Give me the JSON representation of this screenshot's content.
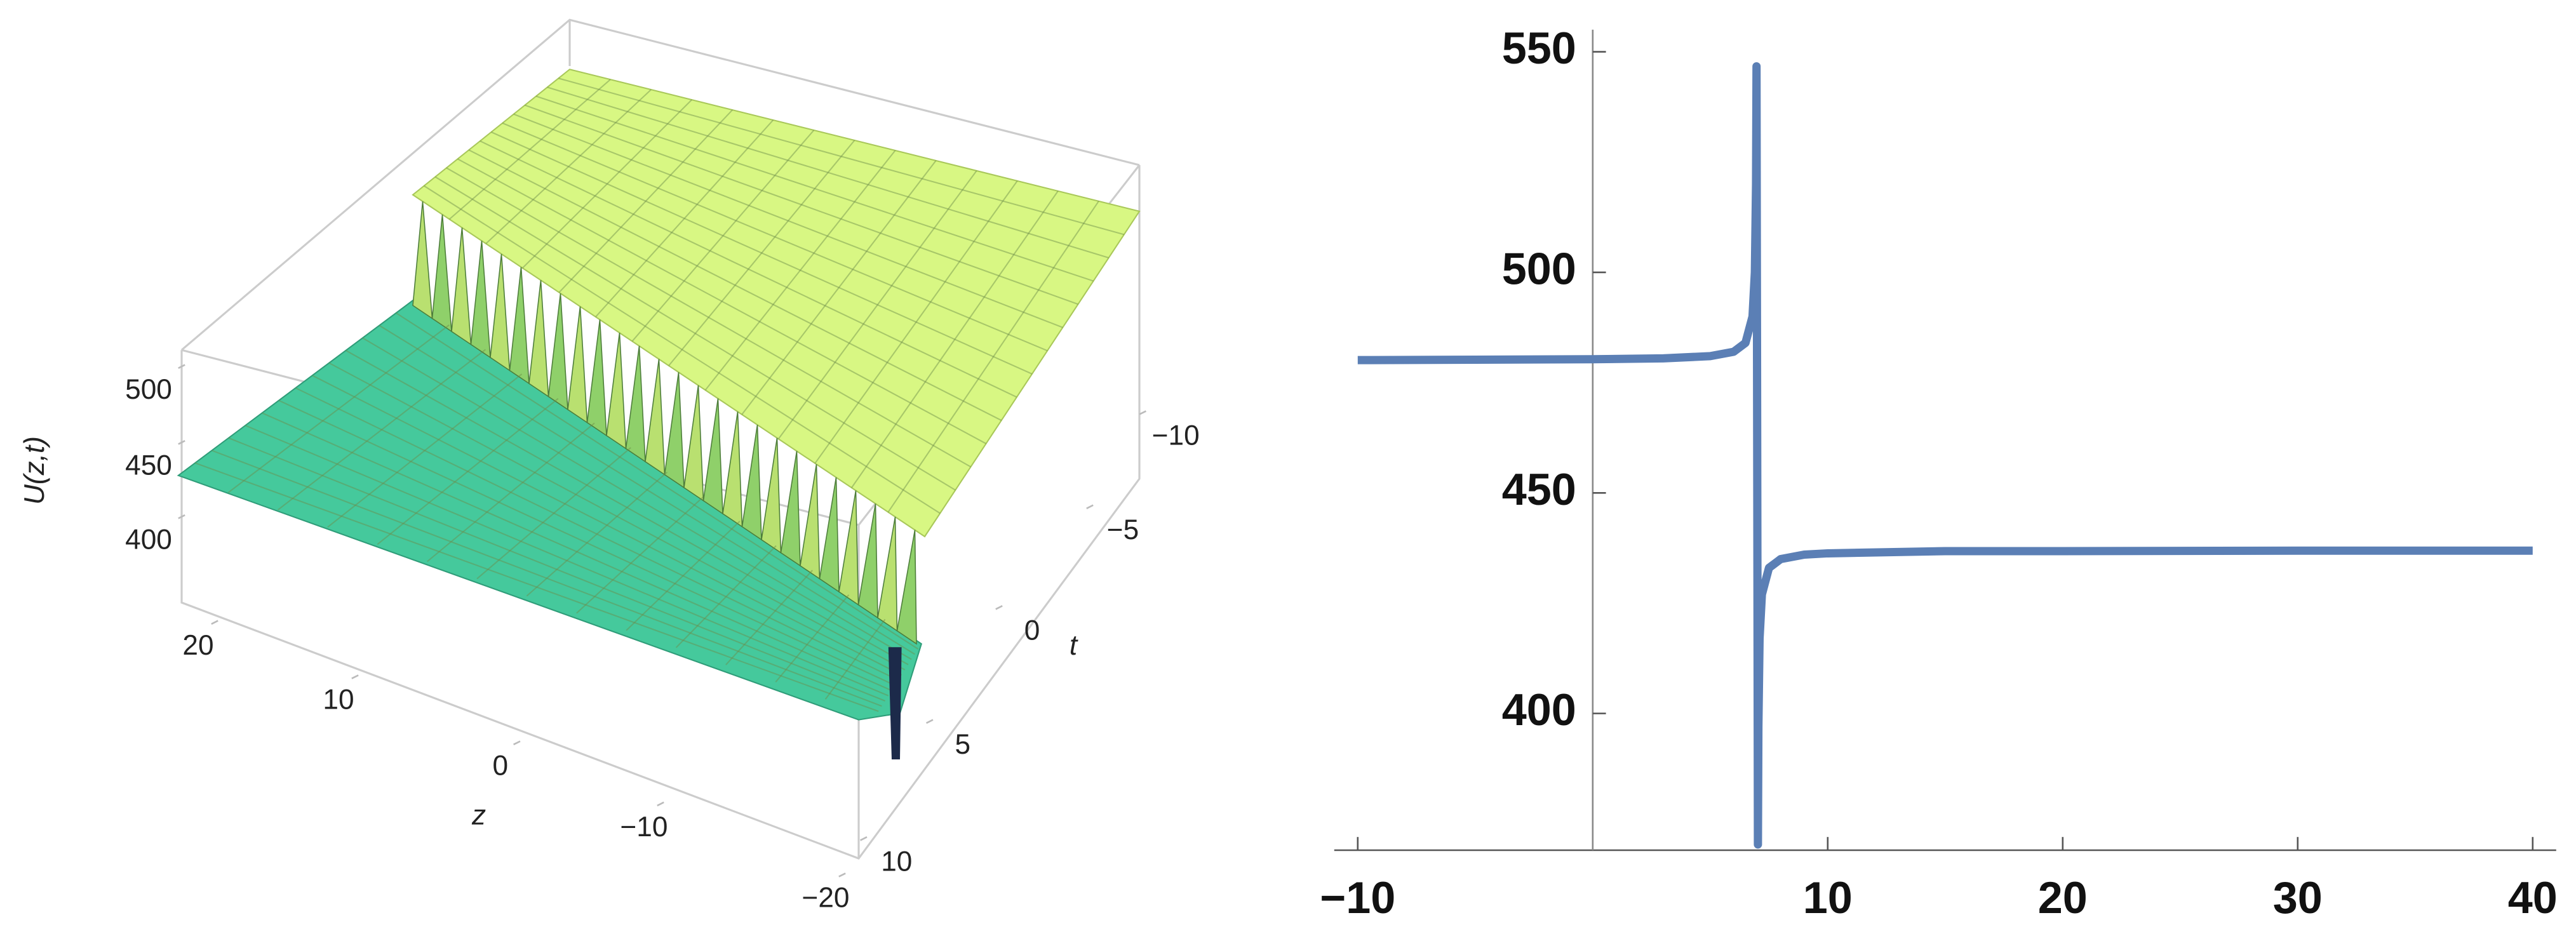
{
  "chart_data": [
    {
      "type": "surface",
      "xlabel": "z",
      "ylabel": "t",
      "zlabel": "U(z,t)",
      "xticks": [
        {
          "value": -20,
          "label": "−20"
        },
        {
          "value": -10,
          "label": "−10"
        },
        0,
        10,
        20
      ],
      "yticks": [
        {
          "value": -10,
          "label": "−10"
        },
        {
          "value": -5,
          "label": "−5"
        },
        0,
        5,
        10
      ],
      "zticks": [
        400,
        450,
        500
      ]
    },
    {
      "type": "line",
      "color": "#5b7fb5",
      "x": [
        -10,
        -5,
        0,
        3,
        5,
        6,
        6.5,
        6.8,
        6.9,
        6.95,
        6.97,
        7.03,
        7.05,
        7.1,
        7.2,
        7.5,
        8,
        9,
        10,
        15,
        20,
        30,
        40
      ],
      "values": [
        480.1,
        480.2,
        480.3,
        480.5,
        481,
        482,
        484,
        490,
        500,
        520,
        546.7,
        370.3,
        397,
        417,
        427,
        433,
        435,
        436,
        436.3,
        436.8,
        436.8,
        436.9,
        436.9
      ],
      "xlim": [
        -11,
        41
      ],
      "ylim": [
        369,
        555
      ],
      "xticks": [
        {
          "value": -10,
          "label": "−10"
        },
        10,
        20,
        30,
        40
      ],
      "yticks": [
        400,
        450,
        500,
        550
      ]
    }
  ]
}
